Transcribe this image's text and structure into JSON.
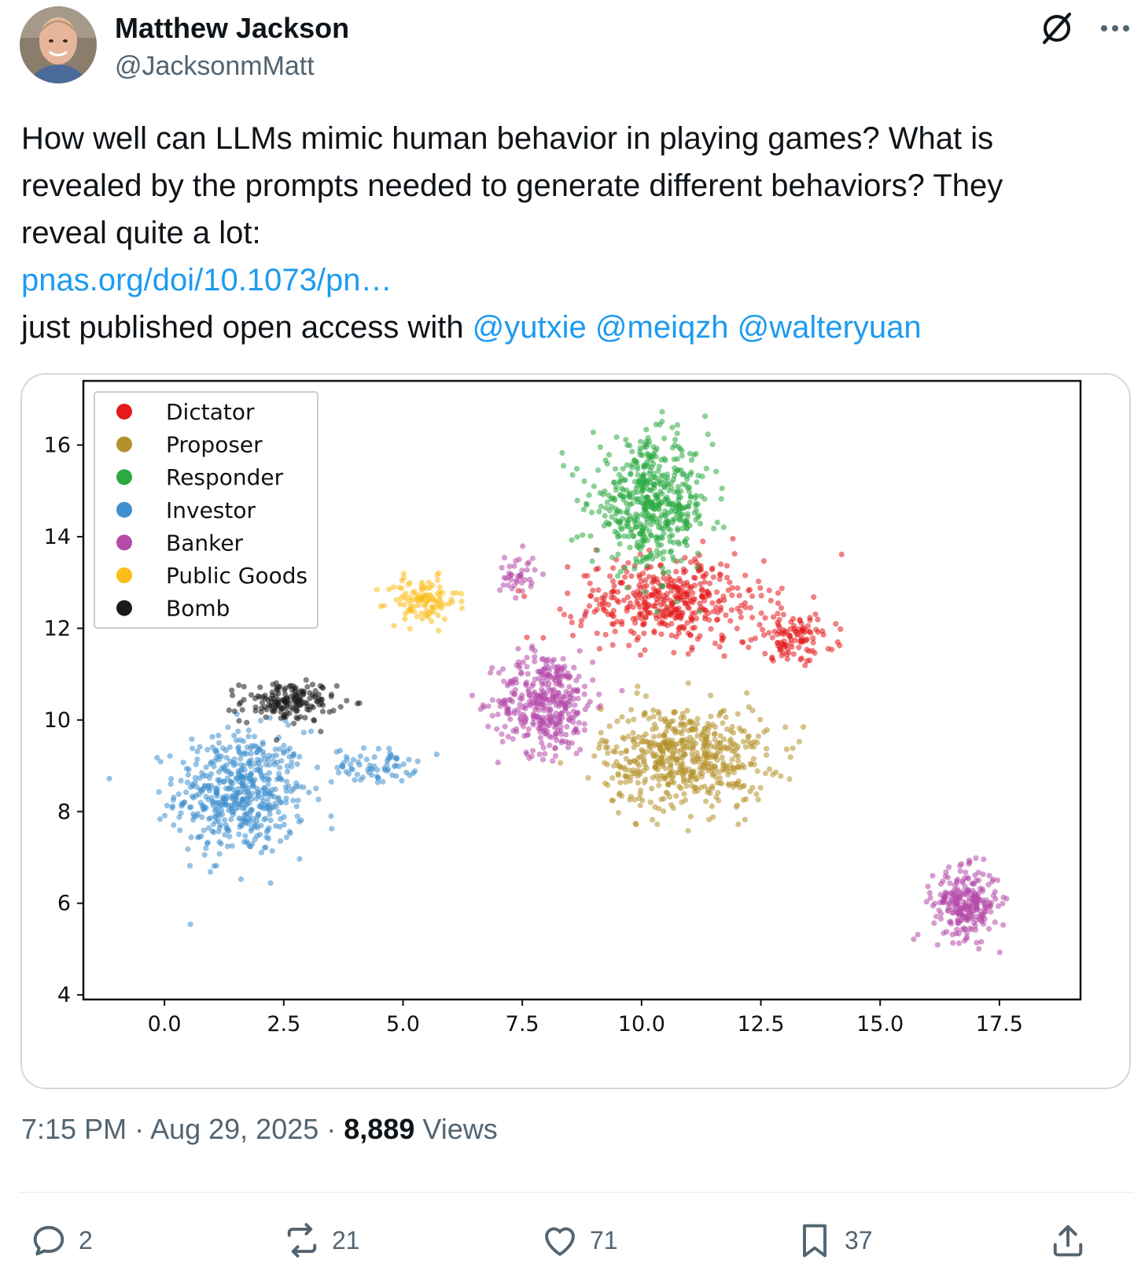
{
  "tweet": {
    "author_name": "Matthew Jackson",
    "author_handle": "@JacksonmMatt",
    "text_line1": "How well can LLMs mimic human behavior in playing games? What is",
    "text_line2": "revealed by the prompts needed to generate different behaviors?   They",
    "text_line3": "reveal quite a lot:",
    "link_text": "pnas.org/doi/10.1073/pn…",
    "text_line5_prefix": "just published open access with ",
    "mentions": [
      "@yutxie",
      "@meiqzh",
      "@walteryuan"
    ],
    "timestamp": "7:15 PM · Aug 29, 2025",
    "separator": " · ",
    "views_count": "8,889",
    "views_label": " Views"
  },
  "icons": {
    "grok": "grok-icon",
    "more": "more-icon",
    "reply": "reply-icon",
    "repost": "repost-icon",
    "like": "heart-icon",
    "bookmark": "bookmark-icon",
    "share": "share-icon"
  },
  "actions": {
    "replies": "2",
    "reposts": "21",
    "likes": "71",
    "bookmarks": "37"
  },
  "colors": {
    "link": "#1d9bf0",
    "secondary_text": "#536471"
  },
  "chart_data": {
    "type": "scatter",
    "xlim": [
      -1.7,
      19.2
    ],
    "ylim": [
      3.9,
      17.4
    ],
    "xticks": [
      0.0,
      2.5,
      5.0,
      7.5,
      10.0,
      12.5,
      15.0,
      17.5
    ],
    "xtick_labels": [
      "0.0",
      "2.5",
      "5.0",
      "7.5",
      "10.0",
      "12.5",
      "15.0",
      "17.5"
    ],
    "yticks": [
      4,
      6,
      8,
      10,
      12,
      14,
      16
    ],
    "ytick_labels": [
      "4",
      "6",
      "8",
      "10",
      "12",
      "14",
      "16"
    ],
    "grid": false,
    "legend_position": "top-left",
    "series": [
      {
        "name": "Dictator",
        "color": "#e41a1c",
        "clusters": [
          {
            "cx": 10.6,
            "cy": 12.6,
            "sx": 1.6,
            "sy": 0.75,
            "n": 420
          },
          {
            "cx": 13.2,
            "cy": 11.8,
            "sx": 0.7,
            "sy": 0.4,
            "n": 110
          }
        ]
      },
      {
        "name": "Proposer",
        "color": "#b5912b",
        "clusters": [
          {
            "cx": 10.9,
            "cy": 9.2,
            "sx": 1.4,
            "sy": 0.9,
            "n": 560
          }
        ]
      },
      {
        "name": "Responder",
        "color": "#2ca942",
        "clusters": [
          {
            "cx": 10.2,
            "cy": 14.7,
            "sx": 1.0,
            "sy": 1.1,
            "n": 520
          }
        ]
      },
      {
        "name": "Investor",
        "color": "#3f8fce",
        "clusters": [
          {
            "cx": 1.6,
            "cy": 8.4,
            "sx": 1.1,
            "sy": 1.1,
            "n": 520
          },
          {
            "cx": 4.4,
            "cy": 9.0,
            "sx": 0.7,
            "sy": 0.3,
            "n": 70
          }
        ]
      },
      {
        "name": "Banker",
        "color": "#b54ba9",
        "clusters": [
          {
            "cx": 8.0,
            "cy": 10.4,
            "sx": 0.8,
            "sy": 0.9,
            "n": 380
          },
          {
            "cx": 16.8,
            "cy": 6.0,
            "sx": 0.55,
            "sy": 0.6,
            "n": 260
          },
          {
            "cx": 7.4,
            "cy": 13.2,
            "sx": 0.3,
            "sy": 0.4,
            "n": 40
          }
        ]
      },
      {
        "name": "Public Goods",
        "color": "#fbbd1a",
        "clusters": [
          {
            "cx": 5.4,
            "cy": 12.6,
            "sx": 0.6,
            "sy": 0.4,
            "n": 110
          }
        ]
      },
      {
        "name": "Bomb",
        "color": "#1a1a1a",
        "clusters": [
          {
            "cx": 2.6,
            "cy": 10.4,
            "sx": 0.8,
            "sy": 0.35,
            "n": 170
          }
        ]
      }
    ]
  }
}
